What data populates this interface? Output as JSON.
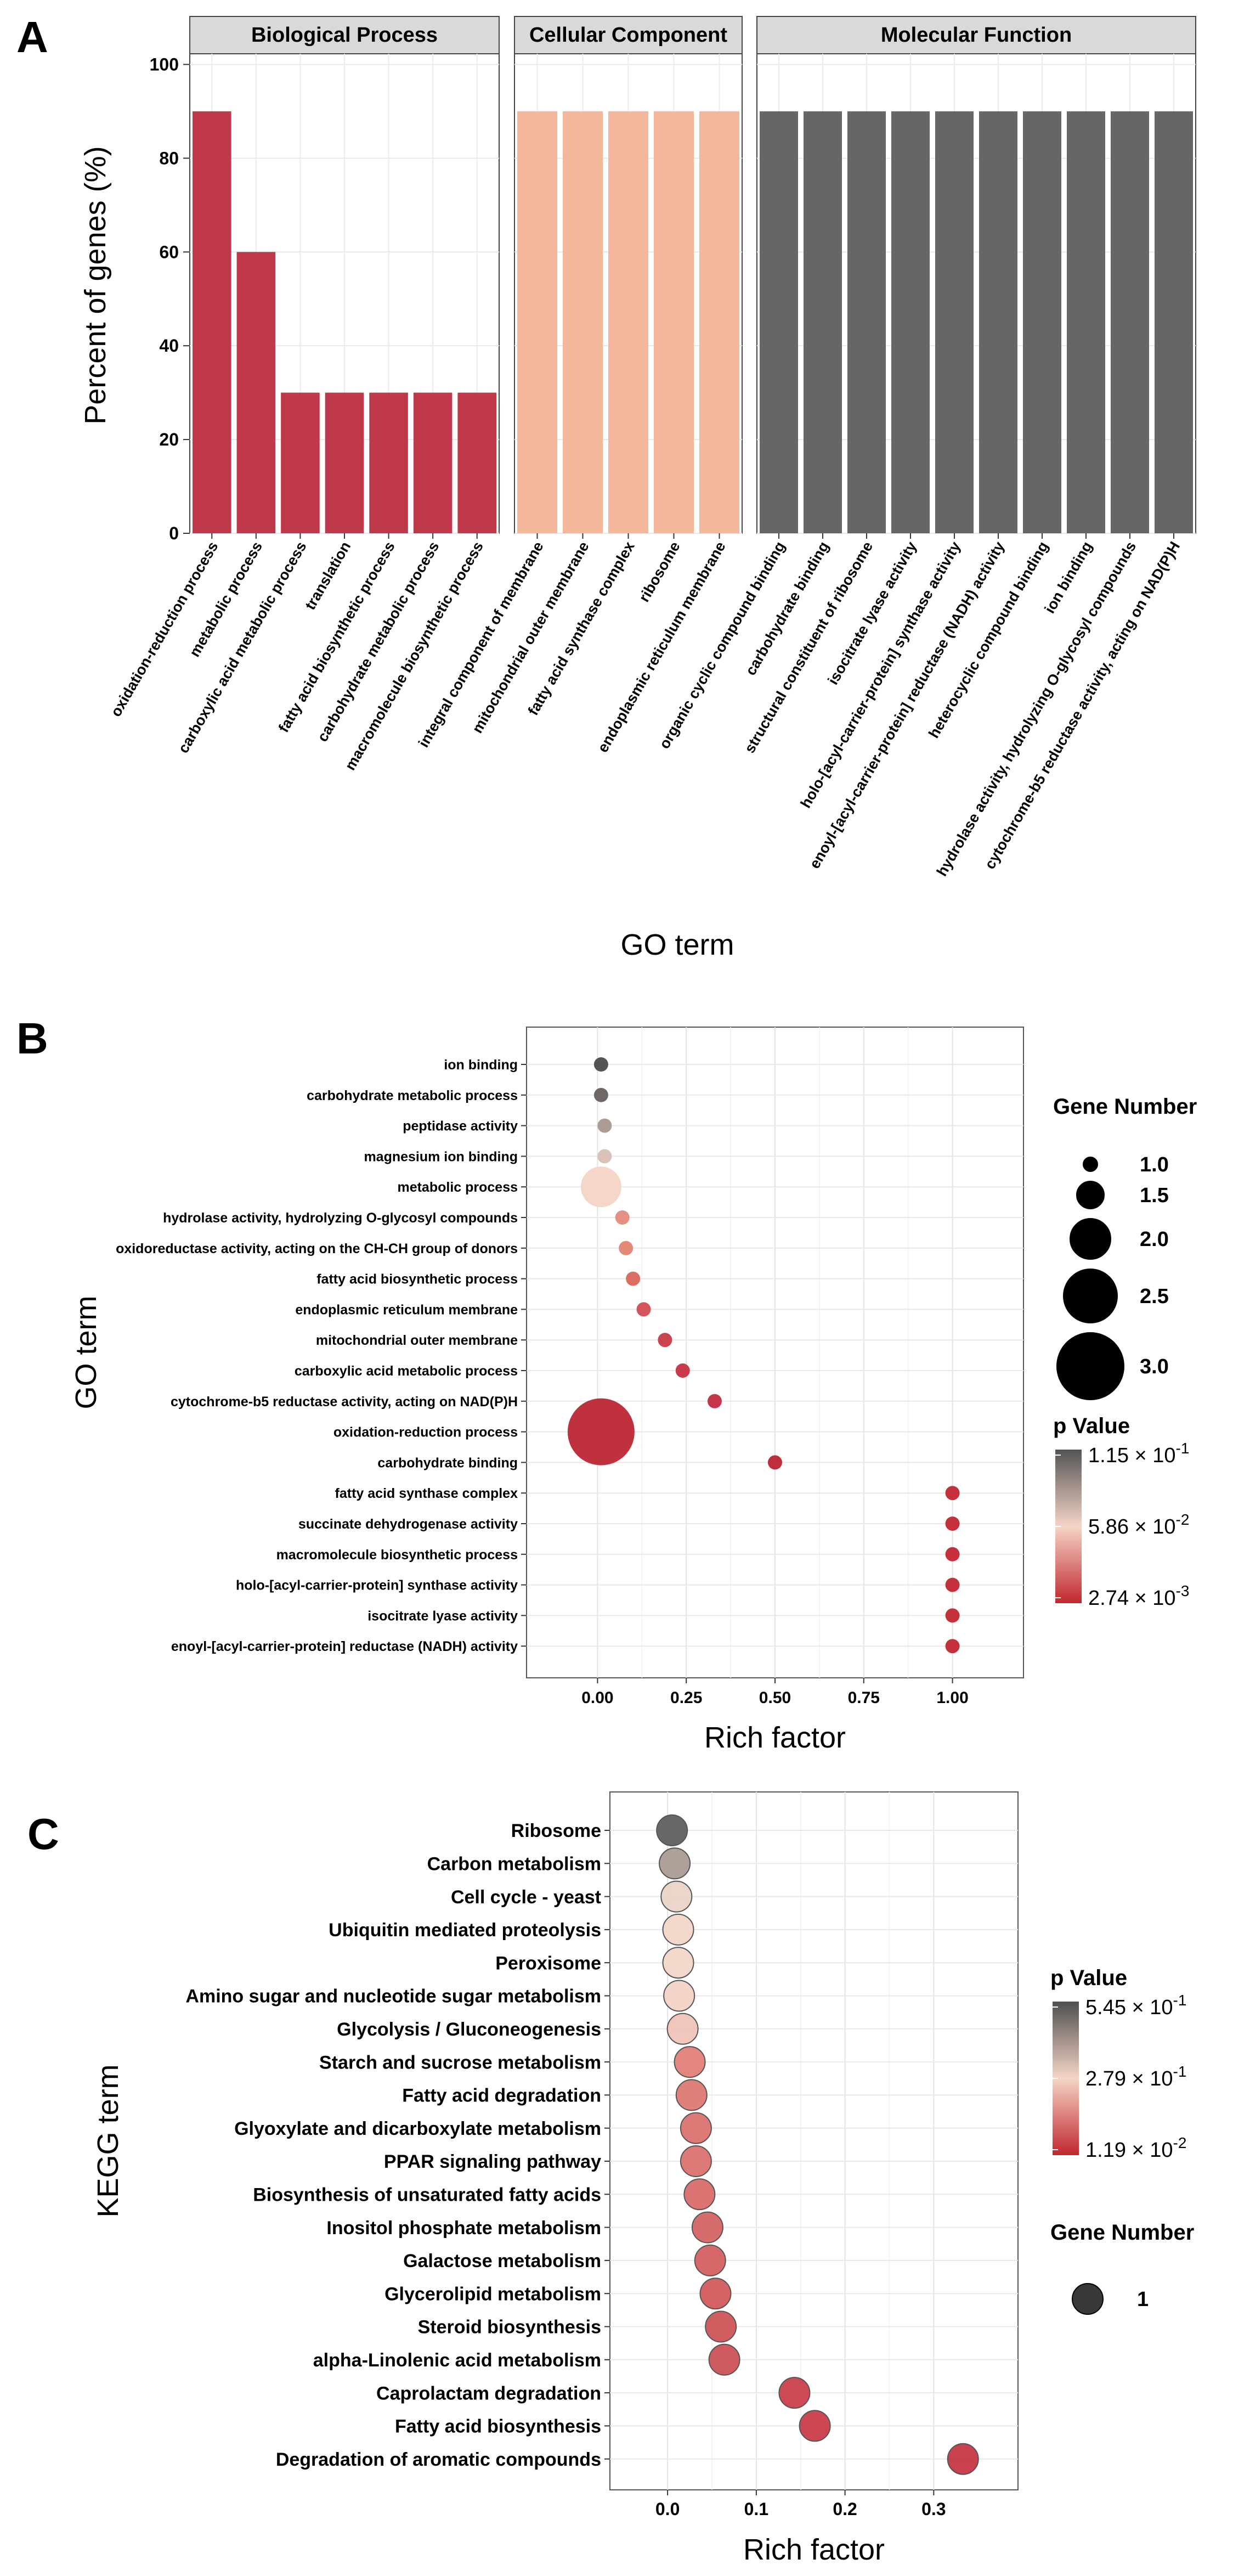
{
  "chart_data": [
    {
      "panel": "A",
      "type": "bar",
      "ylabel": "Percent of genes (%)",
      "xlabel": "GO term",
      "ylim": [
        0,
        100
      ],
      "yticks": [
        0,
        20,
        40,
        60,
        80,
        100
      ],
      "grid": true,
      "facets": [
        {
          "name": "Biological Process",
          "color": "#c0394a",
          "categories": [
            "oxidation-reduction process",
            "metabolic process",
            "carboxylic acid metabolic process",
            "translation",
            "fatty acid biosynthetic process",
            "carbohydrate metabolic process",
            "macromolecule biosynthetic process"
          ],
          "values": [
            90,
            60,
            30,
            30,
            30,
            30,
            30
          ]
        },
        {
          "name": "Cellular Component",
          "color": "#f4b79b",
          "categories": [
            "integral component of membrane",
            "mitochondrial outer membrane",
            "fatty acid synthase complex",
            "ribosome",
            "endoplasmic reticulum membrane"
          ],
          "values": [
            90,
            90,
            90,
            90,
            90
          ]
        },
        {
          "name": "Molecular Function",
          "color": "#666666",
          "categories": [
            "organic cyclic compound binding",
            "carbohydrate binding",
            "structural constituent of ribosome",
            "isocitrate lyase activity",
            "holo-[acyl-carrier-protein] synthase activity",
            "enoyl-[acyl-carrier-protein] reductase (NADH) activity",
            "heterocyclic compound binding",
            "ion binding",
            "hydrolase activity, hydrolyzing O-glycosyl compounds",
            "cytochrome-b5 reductase activity, acting on NAD(P)H"
          ],
          "values": [
            90,
            90,
            90,
            90,
            90,
            90,
            90,
            90,
            90,
            90
          ]
        }
      ]
    },
    {
      "panel": "B",
      "type": "scatter",
      "xlabel": "Rich factor",
      "ylabel": "GO term",
      "xlim": [
        -0.2,
        1.2
      ],
      "xticks": [
        "0.00",
        "0.25",
        "0.50",
        "0.75",
        "1.00"
      ],
      "xtick_values": [
        0,
        0.25,
        0.5,
        0.75,
        1.0
      ],
      "grid": true,
      "categories": [
        "ion binding",
        "carbohydrate metabolic process",
        "peptidase activity",
        "magnesium ion binding",
        "metabolic process",
        "hydrolase activity, hydrolyzing O-glycosyl compounds",
        "oxidoreductase activity, acting on the CH-CH group of donors",
        "fatty acid biosynthetic process",
        "endoplasmic reticulum membrane",
        "mitochondrial outer membrane",
        "carboxylic acid metabolic process",
        "cytochrome-b5 reductase activity, acting on NAD(P)H",
        "oxidation-reduction process",
        "carbohydrate binding",
        "fatty acid synthase complex",
        "succinate dehydrogenase activity",
        "macromolecule biosynthetic process",
        "holo-[acyl-carrier-protein] synthase activity",
        "isocitrate lyase activity",
        "enoyl-[acyl-carrier-protein] reductase (NADH) activity"
      ],
      "x": [
        0.01,
        0.01,
        0.02,
        0.02,
        0.01,
        0.07,
        0.08,
        0.1,
        0.13,
        0.19,
        0.24,
        0.33,
        0.01,
        0.5,
        1.0,
        1.0,
        1.0,
        1.0,
        1.0,
        1.0
      ],
      "gene_number": [
        1,
        1,
        1,
        1,
        2,
        1,
        1,
        1,
        1,
        1,
        1,
        1,
        3,
        1,
        1,
        1,
        1,
        1,
        1,
        1
      ],
      "point_colors": [
        "#545454",
        "#6e6766",
        "#ab9c96",
        "#d9c2b8",
        "#f5d7c9",
        "#e2927f",
        "#e38977",
        "#dc6d63",
        "#d45559",
        "#cc4350",
        "#c93b4a",
        "#c6354a",
        "#c0313f",
        "#bf2e3c",
        "#c4303b",
        "#c4303b",
        "#c4303b",
        "#c4303b",
        "#c4303b",
        "#c4303b"
      ],
      "size_legend": {
        "title": "Gene Number",
        "labels": [
          "1.0",
          "1.5",
          "2.0",
          "2.5",
          "3.0"
        ],
        "values": [
          1.0,
          1.5,
          2.0,
          2.5,
          3.0
        ]
      },
      "color_legend": {
        "title": "p Value",
        "labels": [
          "1.15 × 10",
          "5.86 × 10",
          "2.74 × 10"
        ],
        "exponents": [
          "-1",
          "-2",
          "-3"
        ],
        "gradient": [
          "#545454",
          "#f5d4c6",
          "#c0282f"
        ]
      }
    },
    {
      "panel": "C",
      "type": "scatter",
      "xlabel": "Rich factor",
      "ylabel": "KEGG term",
      "xlim": [
        -0.065,
        0.395
      ],
      "xticks": [
        "0.0",
        "0.1",
        "0.2",
        "0.3"
      ],
      "xtick_values": [
        0,
        0.1,
        0.2,
        0.3
      ],
      "grid": true,
      "categories": [
        "Ribosome",
        "Carbon metabolism",
        "Cell cycle - yeast",
        "Ubiquitin mediated proteolysis",
        "Peroxisome",
        "Amino sugar and nucleotide sugar metabolism",
        "Glycolysis / Gluconeogenesis",
        "Starch and sucrose metabolism",
        "Fatty acid degradation",
        "Glyoxylate and dicarboxylate metabolism",
        "PPAR signaling pathway",
        "Biosynthesis of unsaturated fatty acids",
        "Inositol phosphate metabolism",
        "Galactose metabolism",
        "Glycerolipid metabolism",
        "Steroid biosynthesis",
        "alpha-Linolenic acid metabolism",
        "Caprolactam degradation",
        "Fatty acid biosynthesis",
        "Degradation of aromatic compounds"
      ],
      "x": [
        0.005,
        0.008,
        0.01,
        0.012,
        0.012,
        0.013,
        0.017,
        0.025,
        0.027,
        0.032,
        0.032,
        0.036,
        0.045,
        0.048,
        0.054,
        0.06,
        0.064,
        0.143,
        0.166,
        0.333
      ],
      "gene_number": [
        1,
        1,
        1,
        1,
        1,
        1,
        1,
        1,
        1,
        1,
        1,
        1,
        1,
        1,
        1,
        1,
        1,
        1,
        1,
        1
      ],
      "point_colors": [
        "#5a5a5a",
        "#a89890",
        "#e8d2c6",
        "#f4d5c8",
        "#f4d5c8",
        "#f3d1c4",
        "#f0c2b5",
        "#e07c74",
        "#dd7570",
        "#da6e6a",
        "#da6e6a",
        "#d86866",
        "#d45f5f",
        "#d25b5c",
        "#d05658",
        "#cc5054",
        "#cb4d52",
        "#c93a45",
        "#c83644",
        "#c43040"
      ],
      "size_legend": {
        "title": "Gene Number",
        "labels": [
          "1"
        ],
        "values": [
          1
        ]
      },
      "color_legend": {
        "title": "p Value",
        "labels": [
          "5.45 × 10",
          "2.79 × 10",
          "1.19 × 10"
        ],
        "exponents": [
          "-1",
          "-1",
          "-2"
        ],
        "gradient": [
          "#4f4f4f",
          "#f5d4c6",
          "#c0282f"
        ]
      }
    }
  ],
  "panel_letters": [
    "A",
    "B",
    "C"
  ]
}
